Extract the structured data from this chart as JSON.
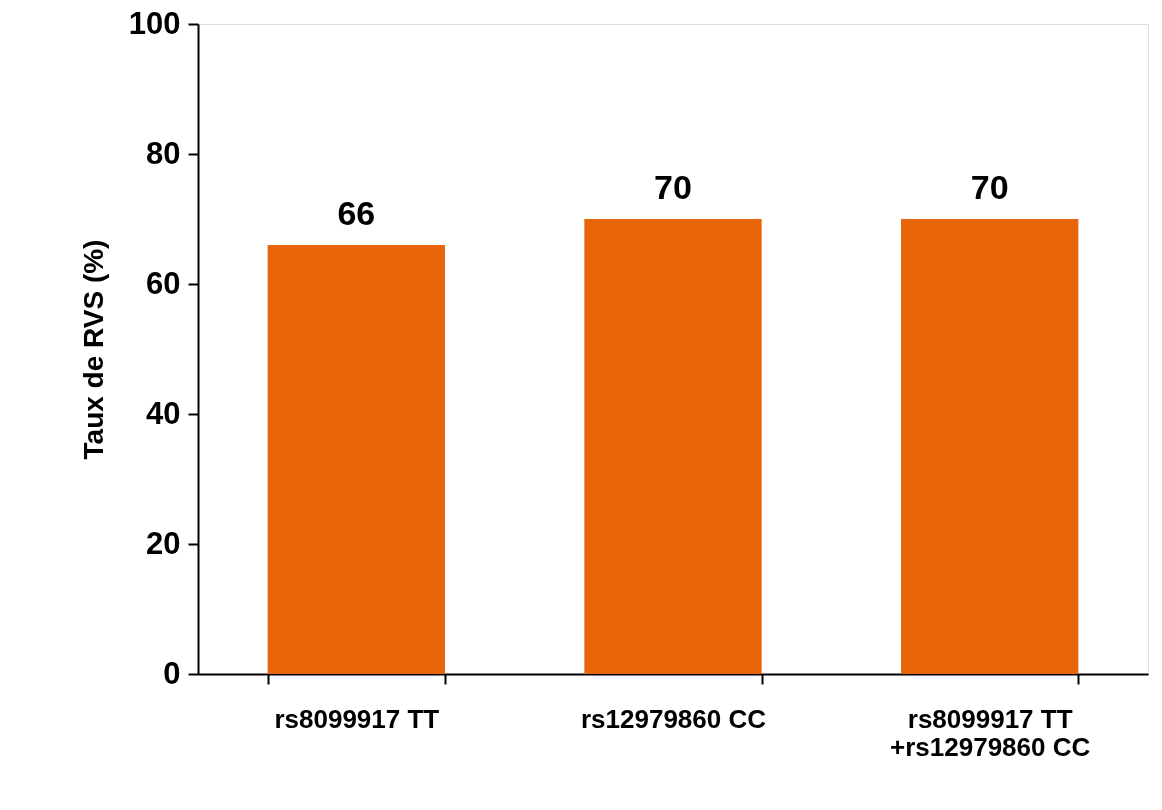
{
  "chart_data": {
    "type": "bar",
    "ylabel": "Taux de RVS (%)",
    "categories": [
      "rs8099917 TT",
      "rs12979860 CC",
      "rs8099917 TT\n+rs12979860 CC"
    ],
    "values": [
      66,
      70,
      70
    ],
    "color": "#e8650a",
    "ylim": [
      0,
      100
    ],
    "yticks": [
      0,
      20,
      40,
      60,
      80,
      100
    ],
    "data_labels": true
  }
}
